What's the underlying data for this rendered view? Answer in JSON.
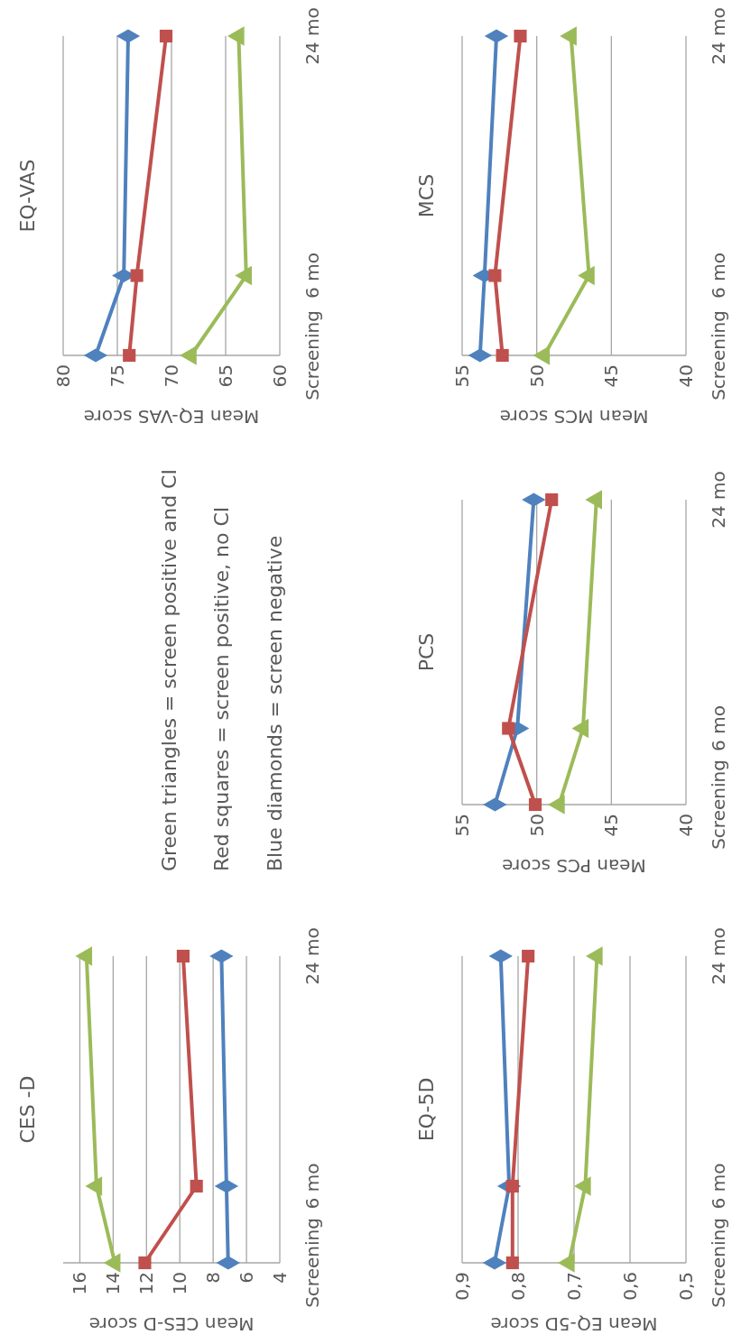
{
  "chart_data": [
    {
      "type": "line",
      "title": "CES -D",
      "xlabel": "Mean CES-D score",
      "xlim": [
        17,
        4
      ],
      "xticks": [
        16,
        14,
        12,
        10,
        8,
        6,
        4
      ],
      "ylim": [
        0,
        24
      ],
      "yticks": [
        {
          "value": 0,
          "label": "Screening"
        },
        {
          "value": 6,
          "label": "6 mo"
        },
        {
          "value": 24,
          "label": "24 mo"
        }
      ],
      "grid": "x",
      "series": [
        {
          "color": "#4f81bd",
          "marker": "diamond",
          "x": [
            7.1,
            7.2,
            7.5
          ],
          "values": [
            0,
            6,
            24
          ]
        },
        {
          "color": "#c0504d",
          "marker": "square",
          "x": [
            12.1,
            9.0,
            9.8
          ],
          "values": [
            0,
            6,
            24
          ]
        },
        {
          "color": "#9bbb59",
          "marker": "triangle",
          "x": [
            13.9,
            15.0,
            15.6
          ],
          "values": [
            0,
            6,
            24
          ]
        }
      ]
    },
    {
      "type": "other",
      "annotations": [
        "Green triangles = screen positive and CI",
        "Red squares = screen positive, no CI",
        "Blue diamonds = screen negative"
      ]
    },
    {
      "type": "line",
      "title": "EQ-VAS",
      "xlabel": "Mean EQ-VAS score",
      "xlim": [
        80,
        60
      ],
      "xticks": [
        80,
        75,
        70,
        65,
        60
      ],
      "ylim": [
        0,
        24
      ],
      "yticks": [
        {
          "value": 0,
          "label": "Screening"
        },
        {
          "value": 6,
          "label": "6 mo"
        },
        {
          "value": 24,
          "label": "24 mo"
        }
      ],
      "grid": "x",
      "series": [
        {
          "color": "#4f81bd",
          "marker": "diamond",
          "x": [
            77.0,
            74.4,
            74.0
          ],
          "values": [
            0,
            6,
            24
          ]
        },
        {
          "color": "#c0504d",
          "marker": "square",
          "x": [
            73.9,
            73.2,
            70.5
          ],
          "values": [
            0,
            6,
            24
          ]
        },
        {
          "color": "#9bbb59",
          "marker": "triangle",
          "x": [
            68.2,
            63.1,
            63.8
          ],
          "values": [
            0,
            6,
            24
          ]
        }
      ]
    },
    {
      "type": "line",
      "title": "EQ-5D",
      "xlabel": "Mean EQ-5D score",
      "xlim": [
        0.9,
        0.5
      ],
      "xticks": [
        {
          "value": 0.9,
          "label": "0,9"
        },
        {
          "value": 0.8,
          "label": "0,8"
        },
        {
          "value": 0.7,
          "label": "0,7"
        },
        {
          "value": 0.6,
          "label": "0,6"
        },
        {
          "value": 0.5,
          "label": "0,5"
        }
      ],
      "ylim": [
        0,
        24
      ],
      "yticks": [
        {
          "value": 0,
          "label": "Screening"
        },
        {
          "value": 6,
          "label": "6 mo"
        },
        {
          "value": 24,
          "label": "24 mo"
        }
      ],
      "grid": "x",
      "series": [
        {
          "color": "#4f81bd",
          "marker": "diamond",
          "x": [
            0.842,
            0.816,
            0.831
          ],
          "values": [
            0,
            6,
            24
          ]
        },
        {
          "color": "#c0504d",
          "marker": "square",
          "x": [
            0.81,
            0.81,
            0.782
          ],
          "values": [
            0,
            6,
            24
          ]
        },
        {
          "color": "#9bbb59",
          "marker": "triangle",
          "x": [
            0.709,
            0.68,
            0.659
          ],
          "values": [
            0,
            6,
            24
          ]
        }
      ]
    },
    {
      "type": "line",
      "title": "PCS",
      "xlabel": "Mean PCS score",
      "xlim": [
        55,
        40
      ],
      "xticks": [
        55,
        50,
        45,
        40
      ],
      "ylim": [
        0,
        24
      ],
      "yticks": [
        {
          "value": 0,
          "label": "Screening"
        },
        {
          "value": 6,
          "label": "6 mo"
        },
        {
          "value": 24,
          "label": "24 mo"
        }
      ],
      "grid": "x",
      "series": [
        {
          "color": "#4f81bd",
          "marker": "diamond",
          "x": [
            52.8,
            51.3,
            50.2
          ],
          "values": [
            0,
            6,
            24
          ]
        },
        {
          "color": "#c0504d",
          "marker": "square",
          "x": [
            50.1,
            51.9,
            49.0
          ],
          "values": [
            0,
            6,
            24
          ]
        },
        {
          "color": "#9bbb59",
          "marker": "triangle",
          "x": [
            48.5,
            46.9,
            46.0
          ],
          "values": [
            0,
            6,
            24
          ]
        }
      ]
    },
    {
      "type": "line",
      "title": "MCS",
      "xlabel": "Mean MCS score",
      "xlim": [
        55,
        40
      ],
      "xticks": [
        55,
        50,
        45,
        40
      ],
      "ylim": [
        0,
        24
      ],
      "yticks": [
        {
          "value": 0,
          "label": "Screening"
        },
        {
          "value": 6,
          "label": "6 mo"
        },
        {
          "value": 24,
          "label": "24 mo"
        }
      ],
      "grid": "x",
      "series": [
        {
          "color": "#4f81bd",
          "marker": "diamond",
          "x": [
            53.8,
            53.5,
            52.7
          ],
          "values": [
            0,
            6,
            24
          ]
        },
        {
          "color": "#c0504d",
          "marker": "square",
          "x": [
            52.3,
            52.8,
            51.1
          ],
          "values": [
            0,
            6,
            24
          ]
        },
        {
          "color": "#9bbb59",
          "marker": "triangle",
          "x": [
            49.5,
            46.5,
            47.7
          ],
          "values": [
            0,
            6,
            24
          ]
        }
      ]
    }
  ]
}
